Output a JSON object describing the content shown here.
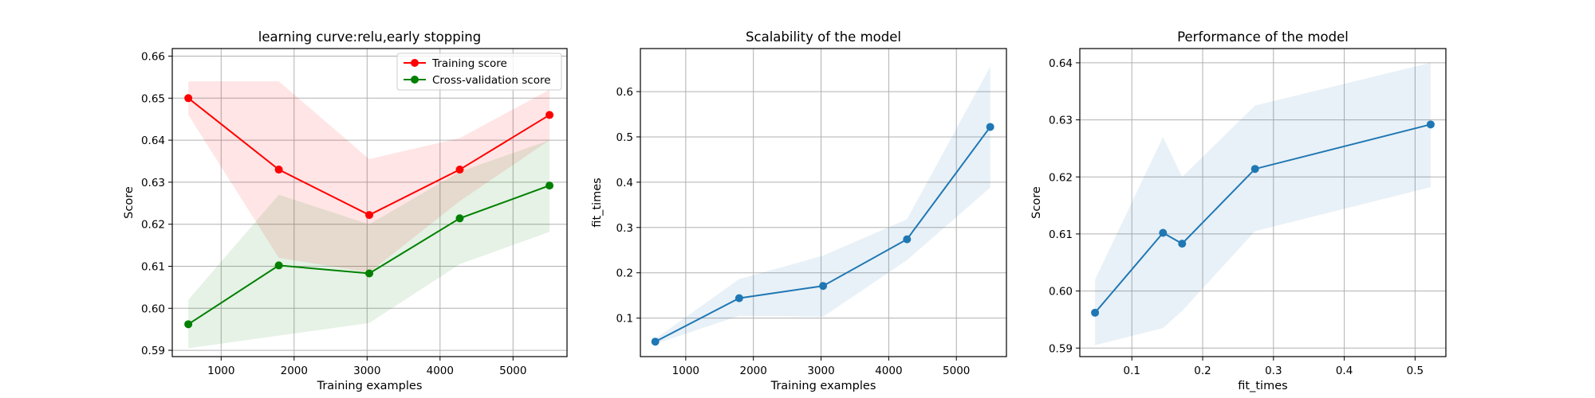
{
  "chart_data": [
    {
      "type": "line",
      "title": "learning curve:relu,early stopping",
      "xlabel": "Training examples",
      "ylabel": "Score",
      "xlim": [
        330,
        5740
      ],
      "ylim": [
        0.5885,
        0.6618
      ],
      "xticks": [
        1000,
        2000,
        3000,
        4000,
        5000
      ],
      "yticks": [
        0.59,
        0.6,
        0.61,
        0.62,
        0.63,
        0.64,
        0.65,
        0.66
      ],
      "ytick_decimals": 2,
      "grid": true,
      "legend": "top-right",
      "x": [
        550,
        1790,
        3030,
        4270,
        5500
      ],
      "series": [
        {
          "name": "Training score",
          "color": "#ff0000",
          "values": [
            0.65,
            0.633,
            0.6222,
            0.633,
            0.646
          ],
          "band_lower": [
            0.646,
            0.612,
            0.6085,
            0.6255,
            0.64
          ],
          "band_upper": [
            0.654,
            0.654,
            0.6355,
            0.6405,
            0.652
          ]
        },
        {
          "name": "Cross-validation score",
          "color": "#008000",
          "values": [
            0.5962,
            0.6102,
            0.6083,
            0.6214,
            0.6292
          ],
          "band_lower": [
            0.5905,
            0.5935,
            0.5965,
            0.6105,
            0.6182
          ],
          "band_upper": [
            0.602,
            0.627,
            0.62,
            0.6325,
            0.64
          ]
        }
      ]
    },
    {
      "type": "line",
      "title": "Scalability of the model",
      "xlabel": "Training examples",
      "ylabel": "fit_times",
      "xlim": [
        330,
        5740
      ],
      "ylim": [
        0.015,
        0.695
      ],
      "xticks": [
        1000,
        2000,
        3000,
        4000,
        5000
      ],
      "yticks": [
        0.1,
        0.2,
        0.3,
        0.4,
        0.5,
        0.6
      ],
      "ytick_decimals": 1,
      "grid": true,
      "x": [
        550,
        1790,
        3030,
        4270,
        5500
      ],
      "series": [
        {
          "color": "#1f77b4",
          "values": [
            0.048,
            0.144,
            0.171,
            0.274,
            0.522
          ],
          "band_lower": [
            0.043,
            0.105,
            0.103,
            0.228,
            0.388
          ],
          "band_upper": [
            0.054,
            0.186,
            0.238,
            0.318,
            0.655
          ]
        }
      ]
    },
    {
      "type": "line",
      "title": "Performance of the model",
      "xlabel": "fit_times",
      "ylabel": "Score",
      "xlim": [
        0.0265,
        0.5435
      ],
      "ylim": [
        0.5885,
        0.6425
      ],
      "xticks": [
        0.1,
        0.2,
        0.3,
        0.4,
        0.5
      ],
      "xtick_decimals": 1,
      "yticks": [
        0.59,
        0.6,
        0.61,
        0.62,
        0.63,
        0.64
      ],
      "ytick_decimals": 2,
      "grid": true,
      "x": [
        0.048,
        0.144,
        0.171,
        0.274,
        0.522
      ],
      "series": [
        {
          "color": "#1f77b4",
          "values": [
            0.5962,
            0.6102,
            0.6083,
            0.6214,
            0.6292
          ],
          "band_lower": [
            0.5905,
            0.5935,
            0.5965,
            0.6105,
            0.6182
          ],
          "band_upper": [
            0.602,
            0.627,
            0.62,
            0.6325,
            0.64
          ]
        }
      ]
    }
  ]
}
